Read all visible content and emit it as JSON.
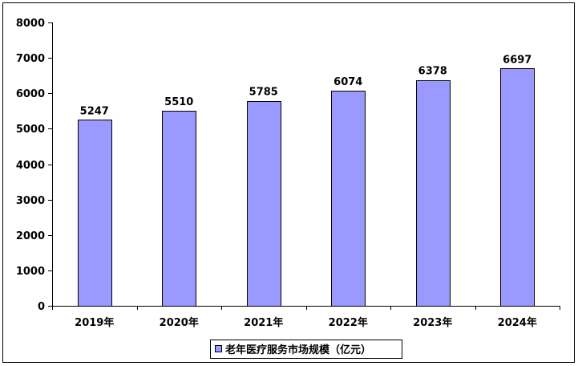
{
  "chart_data": {
    "type": "bar",
    "categories": [
      "2019年",
      "2020年",
      "2021年",
      "2022年",
      "2023年",
      "2024年"
    ],
    "series": [
      {
        "name": "老年医疗服务市场规模（亿元）",
        "values": [
          5247,
          5510,
          5785,
          6074,
          6378,
          6697
        ]
      }
    ],
    "data_labels": [
      "5247",
      "5510",
      "5785",
      "6074",
      "6378",
      "6697"
    ],
    "title": "",
    "xlabel": "",
    "ylabel": "",
    "ylim": [
      0,
      8000
    ],
    "yticks": [
      0,
      1000,
      2000,
      3000,
      4000,
      5000,
      6000,
      7000,
      8000
    ],
    "ytick_labels": [
      "0",
      "1000",
      "2000",
      "3000",
      "4000",
      "5000",
      "6000",
      "7000",
      "8000"
    ],
    "grid": false,
    "legend_position": "bottom",
    "bar_color": "#9999ff"
  }
}
